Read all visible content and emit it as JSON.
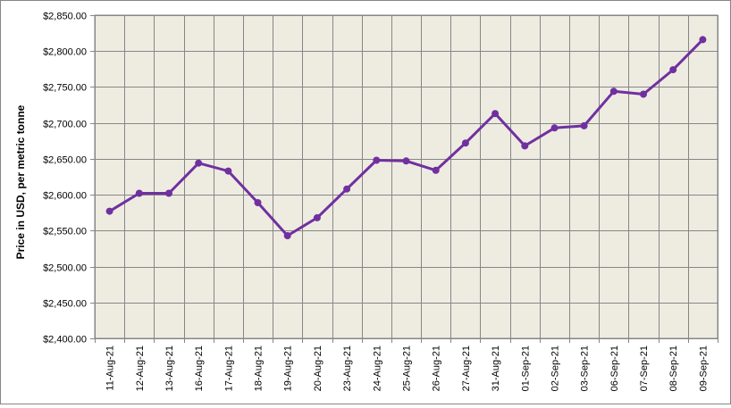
{
  "chart_data": {
    "type": "line",
    "title": "",
    "xlabel": "",
    "ylabel": "Price in USD, per metric tonne",
    "ylim": [
      2400,
      2850
    ],
    "ytick_step": 50,
    "ytick_labels": [
      "$2,400.00",
      "$2,450.00",
      "$2,500.00",
      "$2,550.00",
      "$2,600.00",
      "$2,650.00",
      "$2,700.00",
      "$2,750.00",
      "$2,800.00",
      "$2,850.00"
    ],
    "categories": [
      "11-Aug-21",
      "12-Aug-21",
      "13-Aug-21",
      "16-Aug-21",
      "17-Aug-21",
      "18-Aug-21",
      "19-Aug-21",
      "20-Aug-21",
      "23-Aug-21",
      "24-Aug-21",
      "25-Aug-21",
      "26-Aug-21",
      "27-Aug-21",
      "31-Aug-21",
      "01-Sep-21",
      "02-Sep-21",
      "03-Sep-21",
      "06-Sep-21",
      "07-Sep-21",
      "08-Sep-21",
      "09-Sep-21"
    ],
    "series": [
      {
        "name": "",
        "values": [
          2577,
          2602,
          2602,
          2644,
          2633,
          2589,
          2543,
          2568,
          2608,
          2648,
          2647,
          2634,
          2672,
          2713,
          2668,
          2693,
          2696,
          2744,
          2740,
          2774,
          2816
        ]
      }
    ],
    "grid": true,
    "legend": "none",
    "colors": {
      "line": "#7030A0",
      "plot_background": "#EEECE1",
      "gridline": "#868686"
    }
  }
}
